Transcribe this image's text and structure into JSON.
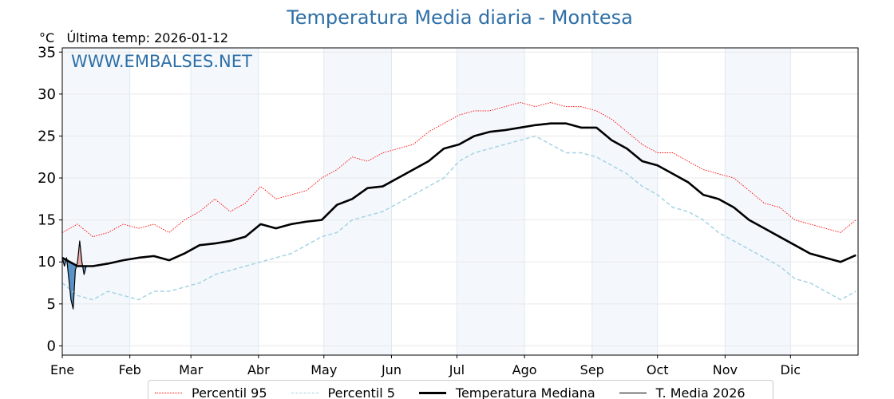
{
  "chart_data": {
    "type": "line",
    "title": "Temperatura Media diaria - Montesa",
    "unit_label": "°C",
    "last_temp_label": "Última temp: 2026-01-12",
    "watermark": "WWW.EMBALSES.NET",
    "ylim": [
      -1.1,
      35.5
    ],
    "xlim": [
      0,
      365
    ],
    "yticks": [
      0,
      5,
      10,
      15,
      20,
      25,
      30,
      35
    ],
    "months": [
      {
        "label": "Ene",
        "day": 0
      },
      {
        "label": "Feb",
        "day": 31
      },
      {
        "label": "Mar",
        "day": 59
      },
      {
        "label": "Abr",
        "day": 90
      },
      {
        "label": "May",
        "day": 120
      },
      {
        "label": "Jun",
        "day": 151
      },
      {
        "label": "Jul",
        "day": 181
      },
      {
        "label": "Ago",
        "day": 212
      },
      {
        "label": "Sep",
        "day": 243
      },
      {
        "label": "Oct",
        "day": 273
      },
      {
        "label": "Nov",
        "day": 304
      },
      {
        "label": "Dic",
        "day": 334
      }
    ],
    "x_days": [
      0,
      7,
      14,
      21,
      28,
      35,
      42,
      49,
      56,
      63,
      70,
      77,
      84,
      91,
      98,
      105,
      112,
      119,
      126,
      133,
      140,
      147,
      154,
      161,
      168,
      175,
      182,
      189,
      196,
      203,
      210,
      217,
      224,
      231,
      238,
      245,
      252,
      259,
      266,
      273,
      280,
      287,
      294,
      301,
      308,
      315,
      322,
      329,
      336,
      343,
      350,
      357,
      364
    ],
    "series": [
      {
        "name": "Percentil 95",
        "color": "#ff0000",
        "style": "dotted",
        "values": [
          13.5,
          14.5,
          13.0,
          13.5,
          14.5,
          14.0,
          14.5,
          13.5,
          15.0,
          16.0,
          17.5,
          16.0,
          17.0,
          19.0,
          17.5,
          18.0,
          18.5,
          20.0,
          21.0,
          22.5,
          22.0,
          23.0,
          23.5,
          24.0,
          25.5,
          26.5,
          27.5,
          28.0,
          28.0,
          28.5,
          29.0,
          28.5,
          29.0,
          28.5,
          28.5,
          28.0,
          27.0,
          25.5,
          24.0,
          23.0,
          23.0,
          22.0,
          21.0,
          20.5,
          20.0,
          18.5,
          17.0,
          16.5,
          15.0,
          14.5,
          14.0,
          13.5,
          15.0
        ]
      },
      {
        "name": "Percentil 5",
        "color": "#a6d3e3",
        "style": "dashed",
        "values": [
          7.5,
          6.0,
          5.5,
          6.5,
          6.0,
          5.5,
          6.5,
          6.5,
          7.0,
          7.5,
          8.5,
          9.0,
          9.5,
          10.0,
          10.5,
          11.0,
          12.0,
          13.0,
          13.5,
          15.0,
          15.5,
          16.0,
          17.0,
          18.0,
          19.0,
          20.0,
          22.0,
          23.0,
          23.5,
          24.0,
          24.5,
          25.0,
          24.0,
          23.0,
          23.0,
          22.5,
          21.5,
          20.5,
          19.0,
          18.0,
          16.5,
          16.0,
          15.0,
          13.5,
          12.5,
          11.5,
          10.5,
          9.5,
          8.0,
          7.5,
          6.5,
          5.5,
          6.5
        ]
      },
      {
        "name": "Temperatura Mediana",
        "color": "#000000",
        "style": "thick",
        "values": [
          10.5,
          9.5,
          9.5,
          9.8,
          10.2,
          10.5,
          10.7,
          10.2,
          11.0,
          12.0,
          12.2,
          12.5,
          13.0,
          14.5,
          14.0,
          14.5,
          14.8,
          15.0,
          16.8,
          17.5,
          18.8,
          19.0,
          20.0,
          21.0,
          22.0,
          23.5,
          24.0,
          25.0,
          25.5,
          25.7,
          26.0,
          26.3,
          26.5,
          26.5,
          26.0,
          26.0,
          24.5,
          23.5,
          22.0,
          21.5,
          20.5,
          19.5,
          18.0,
          17.5,
          16.5,
          15.0,
          14.0,
          13.0,
          12.0,
          11.0,
          10.5,
          10.0,
          10.8
        ]
      },
      {
        "name": "T. Media 2026",
        "color": "#000000",
        "style": "thin",
        "x_days": [
          0,
          1,
          2,
          3,
          4,
          5,
          6,
          7,
          8,
          9,
          10,
          11
        ],
        "values": [
          10.5,
          9.5,
          10.5,
          8.0,
          5.5,
          4.4,
          9.0,
          10.0,
          12.5,
          10.0,
          8.5,
          9.5
        ]
      }
    ],
    "fill_below_color": "#3a7fbf",
    "fill_above_color": "#e8a0a0",
    "legend_position": "bottom-center"
  }
}
